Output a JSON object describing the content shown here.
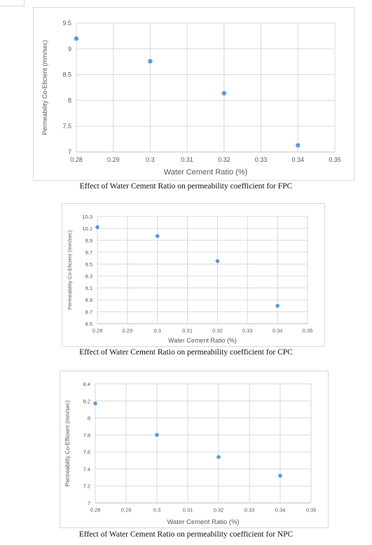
{
  "chart_data": [
    {
      "type": "scatter",
      "title": "",
      "xlabel": "Water Cement Ratio (%)",
      "ylabel": "Permeability Co-Eficient (mm/sec)",
      "xlim": [
        0.28,
        0.35
      ],
      "ylim": [
        7,
        9.5
      ],
      "xticks": [
        "0.28",
        "0.29",
        "0.3",
        "0.31",
        "0.32",
        "0.33",
        "0.34",
        "0.35"
      ],
      "yticks": [
        "7",
        "7.5",
        "8",
        "8.5",
        "9",
        "9.5"
      ],
      "x": [
        0.28,
        0.3,
        0.32,
        0.34
      ],
      "y": [
        9.2,
        8.76,
        8.14,
        7.13
      ],
      "grid": true,
      "marker_color": "#5b9bd5",
      "caption": "Effect of Water Cement Ratio on permeability coefficient for FPC"
    },
    {
      "type": "scatter",
      "title": "",
      "xlabel": "Water Cement Ratio (%)",
      "ylabel": "Permeability Co-Eficient (mm/sec)",
      "xlim": [
        0.28,
        0.35
      ],
      "ylim": [
        8.5,
        10.3
      ],
      "xticks": [
        "0.28",
        "0.29",
        "0.3",
        "0.31",
        "0.32",
        "0.33",
        "0.34",
        "0.35"
      ],
      "yticks": [
        "8.5",
        "8.7",
        "8.9",
        "9.1",
        "9.3",
        "9.5",
        "9.7",
        "9.9",
        "10.1",
        "10.3"
      ],
      "x": [
        0.28,
        0.3,
        0.32,
        0.34
      ],
      "y": [
        10.12,
        9.97,
        9.55,
        8.8
      ],
      "grid": true,
      "marker_color": "#5b9bd5",
      "caption": "Effect of Water Cement Ratio on permeability coefficient for CPC"
    },
    {
      "type": "scatter",
      "title": "",
      "xlabel": "Water Cement Ratio (%)",
      "ylabel": "Permeability Co-Efficient (mm/sec)",
      "xlim": [
        0.28,
        0.35
      ],
      "ylim": [
        7,
        8.4
      ],
      "xticks": [
        "0.28",
        "0.29",
        "0.3",
        "0.31",
        "0.32",
        "0.33",
        "0.34",
        "0.35"
      ],
      "yticks": [
        "7",
        "7.2",
        "7.4",
        "7.6",
        "7.8",
        "8",
        "8.2",
        "8.4"
      ],
      "x": [
        0.28,
        0.3,
        0.32,
        0.34
      ],
      "y": [
        8.17,
        7.8,
        7.54,
        7.32
      ],
      "grid": true,
      "marker_color": "#5b9bd5",
      "caption": "Effect of Water Cement Ratio on permeability coefficient for NPC"
    }
  ]
}
